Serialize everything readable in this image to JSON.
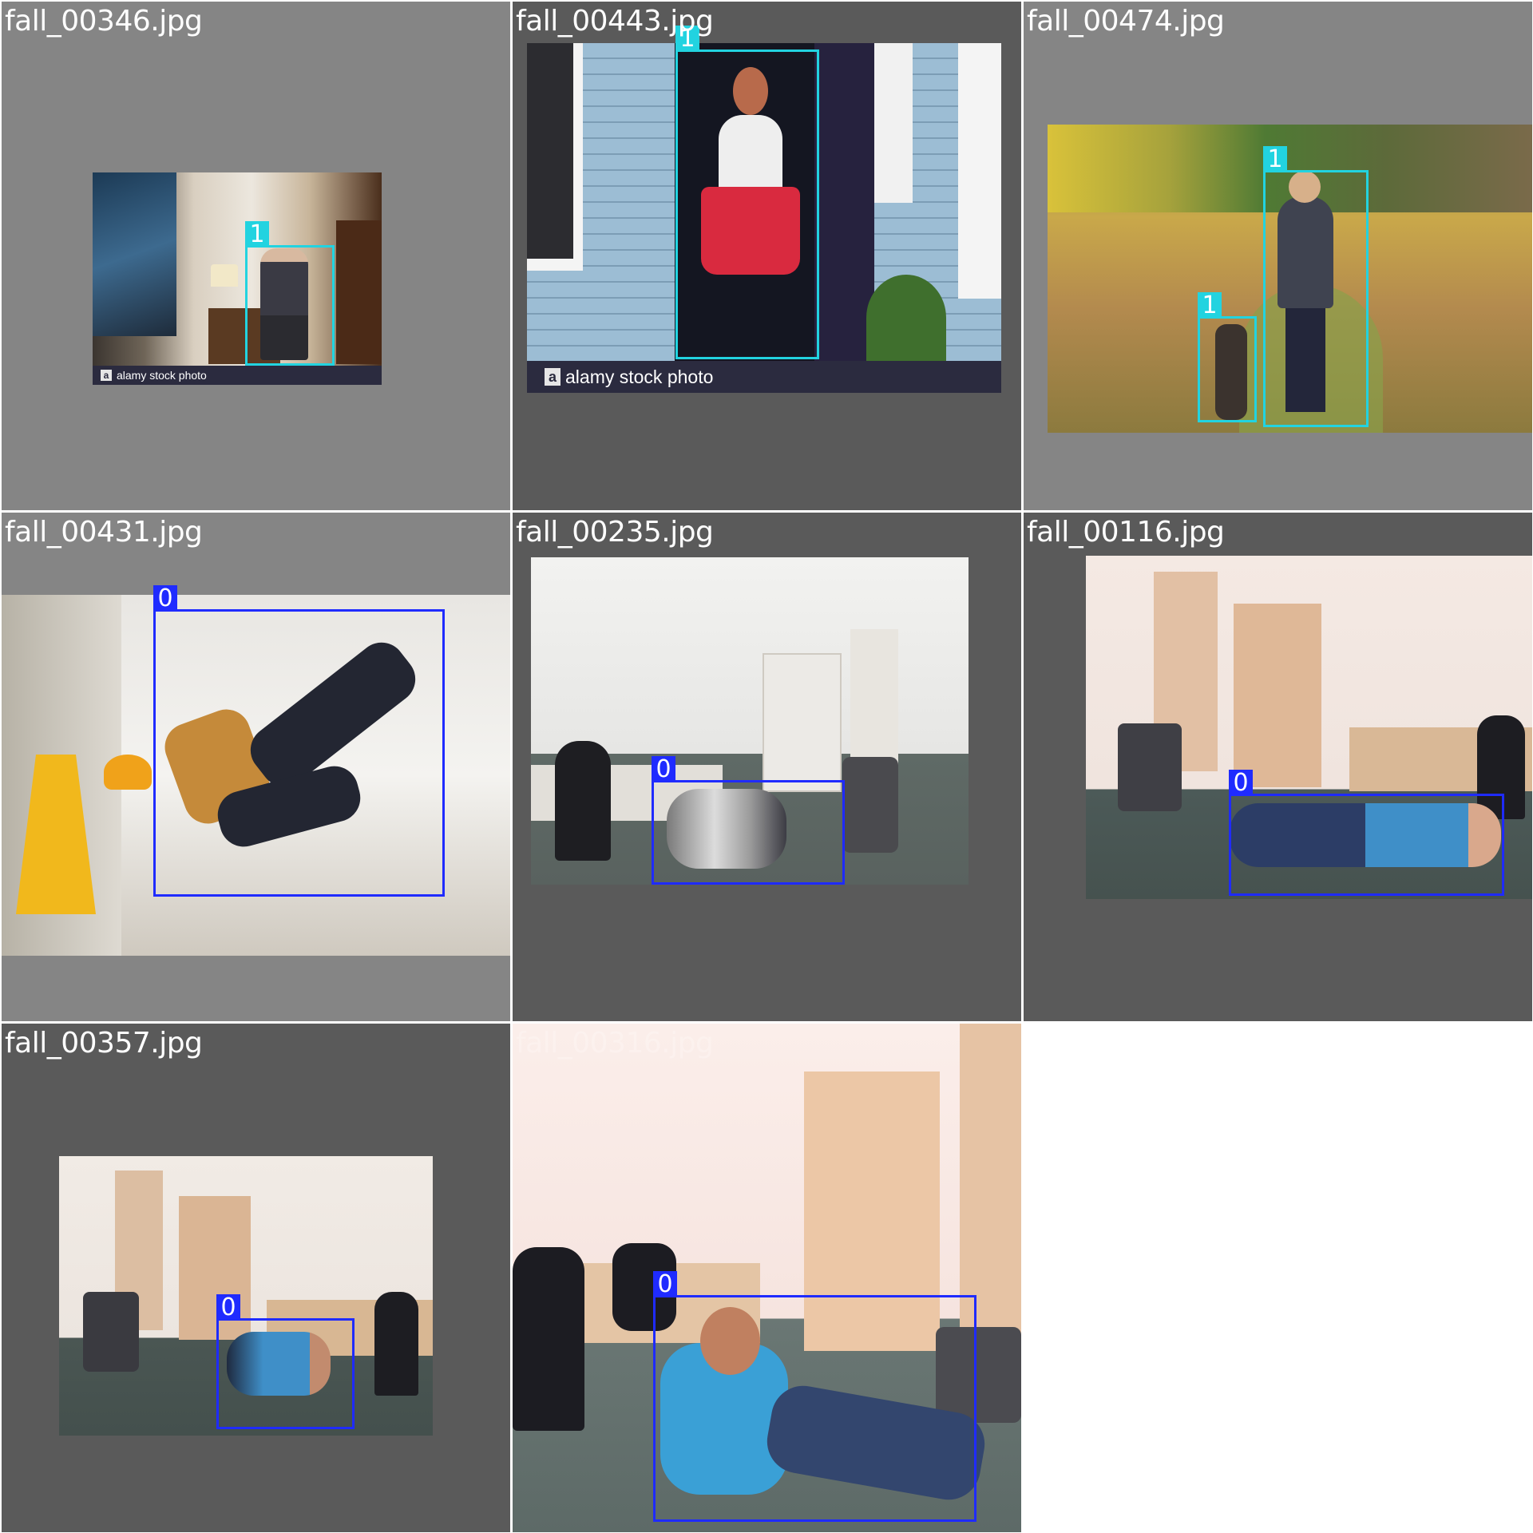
{
  "tiles": [
    {
      "filename": "fall_00346.jpg",
      "watermark": "alamy stock photo",
      "boxes": [
        {
          "label": "1"
        }
      ]
    },
    {
      "filename": "fall_00443.jpg",
      "watermark": "alamy stock photo",
      "boxes": [
        {
          "label": "1"
        }
      ]
    },
    {
      "filename": "fall_00474.jpg",
      "boxes": [
        {
          "label": "1"
        },
        {
          "label": "1"
        }
      ]
    },
    {
      "filename": "fall_00431.jpg",
      "boxes": [
        {
          "label": "0"
        }
      ]
    },
    {
      "filename": "fall_00235.jpg",
      "boxes": [
        {
          "label": "0"
        }
      ]
    },
    {
      "filename": "fall_00116.jpg",
      "boxes": [
        {
          "label": "0"
        }
      ]
    },
    {
      "filename": "fall_00357.jpg",
      "boxes": [
        {
          "label": "0"
        }
      ]
    },
    {
      "filename": "fall_00316.jpg",
      "boxes": [
        {
          "label": "0"
        }
      ]
    }
  ],
  "colors": {
    "class_0": "#1f2bff",
    "class_1": "#22d3e0",
    "letterbox_light": "#858585",
    "letterbox_dark": "#5a5a5a"
  },
  "watermark_icon": "a"
}
